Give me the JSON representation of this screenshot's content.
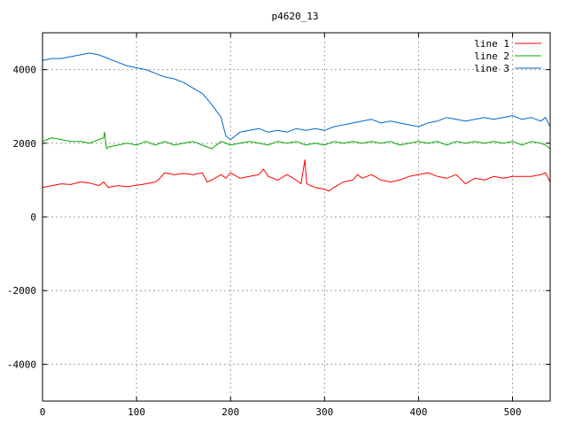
{
  "chart_data": {
    "type": "line",
    "title": "p4620_13",
    "xlabel": "",
    "ylabel": "",
    "xlim": [
      0,
      540
    ],
    "ylim": [
      -5000,
      5000
    ],
    "x_ticks": [
      0,
      100,
      200,
      300,
      400,
      500
    ],
    "y_ticks": [
      -4000,
      -2000,
      0,
      2000,
      4000
    ],
    "grid": true,
    "legend_position": "top-right",
    "series": [
      {
        "name": "line 1",
        "color": "#ff0000",
        "x": [
          0,
          10,
          20,
          30,
          40,
          50,
          60,
          65,
          70,
          80,
          90,
          100,
          110,
          120,
          125,
          130,
          140,
          150,
          160,
          170,
          175,
          180,
          190,
          195,
          200,
          210,
          220,
          230,
          235,
          240,
          250,
          260,
          270,
          275,
          279,
          281,
          285,
          290,
          300,
          305,
          310,
          320,
          330,
          335,
          340,
          350,
          360,
          370,
          380,
          390,
          400,
          410,
          420,
          430,
          440,
          450,
          460,
          470,
          480,
          490,
          500,
          510,
          520,
          530,
          535,
          540
        ],
        "y": [
          800,
          850,
          900,
          880,
          950,
          920,
          850,
          950,
          800,
          850,
          820,
          860,
          900,
          950,
          1050,
          1200,
          1150,
          1180,
          1150,
          1200,
          950,
          1000,
          1150,
          1050,
          1200,
          1050,
          1100,
          1150,
          1300,
          1100,
          1000,
          1150,
          1000,
          900,
          1550,
          900,
          850,
          800,
          750,
          700,
          800,
          950,
          1000,
          1150,
          1050,
          1150,
          1000,
          950,
          1000,
          1100,
          1150,
          1200,
          1100,
          1050,
          1150,
          900,
          1050,
          1000,
          1100,
          1050,
          1100,
          1100,
          1100,
          1150,
          1200,
          950
        ]
      },
      {
        "name": "line 2",
        "color": "#00aa00",
        "x": [
          0,
          10,
          20,
          30,
          40,
          50,
          60,
          65,
          66,
          68,
          70,
          80,
          90,
          100,
          110,
          120,
          130,
          140,
          150,
          160,
          170,
          180,
          190,
          200,
          210,
          220,
          230,
          240,
          250,
          260,
          270,
          280,
          290,
          300,
          310,
          320,
          330,
          340,
          350,
          360,
          370,
          380,
          390,
          400,
          410,
          420,
          430,
          440,
          450,
          460,
          470,
          480,
          490,
          500,
          510,
          520,
          530,
          535,
          540
        ],
        "y": [
          2050,
          2150,
          2100,
          2050,
          2050,
          2000,
          2100,
          2150,
          2300,
          1850,
          1900,
          1950,
          2000,
          1950,
          2050,
          1950,
          2050,
          1950,
          2000,
          2050,
          1950,
          1850,
          2050,
          1950,
          2000,
          2050,
          2000,
          1950,
          2050,
          2000,
          2050,
          1950,
          2000,
          1950,
          2050,
          2000,
          2050,
          2000,
          2050,
          2000,
          2050,
          1950,
          2000,
          2050,
          2000,
          2050,
          1950,
          2050,
          2000,
          2050,
          2000,
          2050,
          2000,
          2050,
          1950,
          2050,
          2000,
          1950,
          1850
        ]
      },
      {
        "name": "line 3",
        "color": "#0066cc",
        "x": [
          0,
          10,
          20,
          30,
          40,
          50,
          60,
          70,
          80,
          90,
          100,
          110,
          120,
          130,
          140,
          150,
          160,
          170,
          180,
          190,
          195,
          200,
          210,
          220,
          230,
          240,
          250,
          260,
          270,
          280,
          290,
          300,
          310,
          320,
          330,
          340,
          350,
          360,
          370,
          380,
          390,
          400,
          410,
          420,
          430,
          440,
          450,
          460,
          470,
          480,
          490,
          500,
          510,
          520,
          530,
          535,
          540
        ],
        "y": [
          4250,
          4300,
          4300,
          4350,
          4400,
          4450,
          4400,
          4300,
          4200,
          4100,
          4050,
          4000,
          3900,
          3800,
          3750,
          3650,
          3500,
          3350,
          3050,
          2700,
          2200,
          2100,
          2300,
          2350,
          2400,
          2300,
          2350,
          2300,
          2400,
          2350,
          2400,
          2350,
          2450,
          2500,
          2550,
          2600,
          2650,
          2550,
          2600,
          2550,
          2500,
          2450,
          2550,
          2600,
          2700,
          2650,
          2600,
          2650,
          2700,
          2650,
          2700,
          2750,
          2650,
          2700,
          2600,
          2700,
          2450
        ]
      }
    ]
  }
}
